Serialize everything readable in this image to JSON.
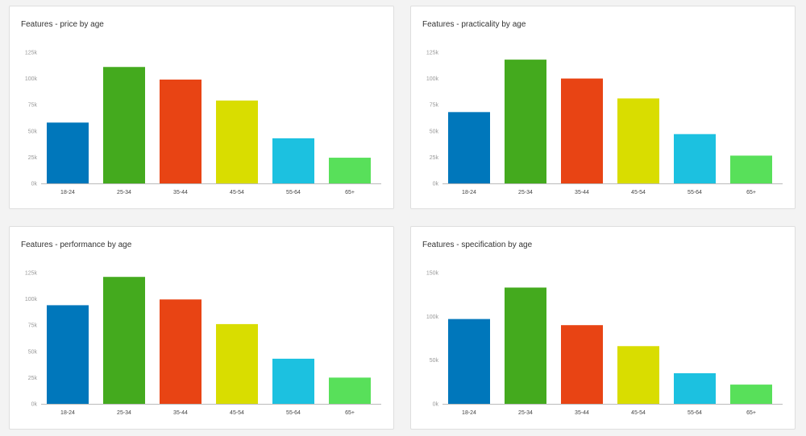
{
  "colors": [
    "#0077bb",
    "#44aa1e",
    "#e84414",
    "#d9dd00",
    "#1cc1e0",
    "#58e05a"
  ],
  "chart_data": [
    {
      "type": "bar",
      "title": "Features - price by age",
      "categories": [
        "18-24",
        "25-34",
        "35-44",
        "45-54",
        "55-64",
        "65+"
      ],
      "values": [
        58000,
        111000,
        99000,
        79000,
        43000,
        24500
      ],
      "yticks": [
        0,
        25000,
        50000,
        75000,
        100000,
        125000
      ],
      "ytick_labels": [
        "0k",
        "25k",
        "50k",
        "75k",
        "100k",
        "125k"
      ],
      "ylim": [
        0,
        125000
      ],
      "xlabel": "",
      "ylabel": "",
      "grid": false
    },
    {
      "type": "bar",
      "title": "Features - practicality by age",
      "categories": [
        "18-24",
        "25-34",
        "35-44",
        "45-54",
        "55-64",
        "65+"
      ],
      "values": [
        68000,
        118000,
        100000,
        81000,
        47000,
        26500
      ],
      "yticks": [
        0,
        25000,
        50000,
        75000,
        100000,
        125000
      ],
      "ytick_labels": [
        "0k",
        "25k",
        "50k",
        "75k",
        "100k",
        "125k"
      ],
      "ylim": [
        0,
        125000
      ],
      "xlabel": "",
      "ylabel": "",
      "grid": false
    },
    {
      "type": "bar",
      "title": "Features - performance by age",
      "categories": [
        "18-24",
        "25-34",
        "35-44",
        "45-54",
        "55-64",
        "65+"
      ],
      "values": [
        94000,
        121000,
        99500,
        76000,
        43000,
        25000
      ],
      "yticks": [
        0,
        25000,
        50000,
        75000,
        100000,
        125000
      ],
      "ytick_labels": [
        "0k",
        "25k",
        "50k",
        "75k",
        "100k",
        "125k"
      ],
      "ylim": [
        0,
        125000
      ],
      "xlabel": "",
      "ylabel": "",
      "grid": false
    },
    {
      "type": "bar",
      "title": "Features - specification by age",
      "categories": [
        "18-24",
        "25-34",
        "35-44",
        "45-54",
        "55-64",
        "65+"
      ],
      "values": [
        97000,
        133000,
        90000,
        66000,
        35000,
        22000
      ],
      "yticks": [
        0,
        50000,
        100000,
        150000
      ],
      "ytick_labels": [
        "0k",
        "50k",
        "100k",
        "150k"
      ],
      "ylim": [
        0,
        150000
      ],
      "xlabel": "",
      "ylabel": "",
      "grid": false
    }
  ]
}
